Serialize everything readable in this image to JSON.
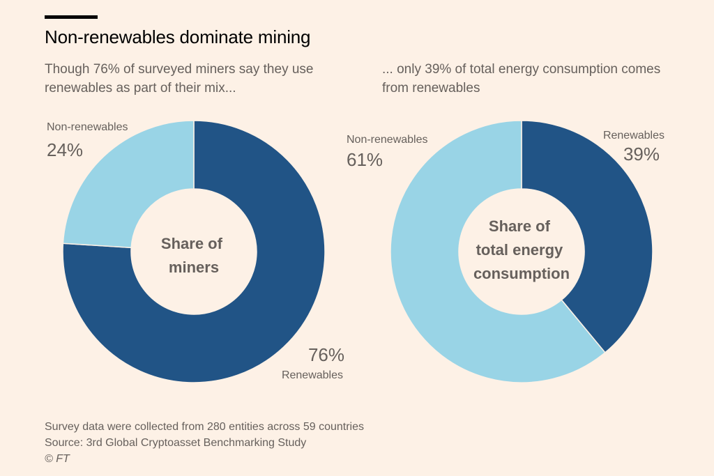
{
  "header": {
    "title": "Non-renewables dominate mining"
  },
  "chart_data": [
    {
      "type": "pie",
      "donut": true,
      "subtitle": "Though 76% of surveyed miners say they use renewables as part of their mix...",
      "center_label": [
        "Share of",
        "miners"
      ],
      "slices": [
        {
          "label": "Renewables",
          "value": 76,
          "display": "76%"
        },
        {
          "label": "Non-renewables",
          "value": 24,
          "display": "24%"
        }
      ]
    },
    {
      "type": "pie",
      "donut": true,
      "subtitle": "... only 39% of total energy consumption comes from renewables",
      "center_label": [
        "Share of",
        "total energy",
        "consumption"
      ],
      "slices": [
        {
          "label": "Renewables",
          "value": 39,
          "display": "39%"
        },
        {
          "label": "Non-renewables",
          "value": 61,
          "display": "61%"
        }
      ]
    }
  ],
  "colors": {
    "renewables": "#215486",
    "non_renewables": "#99d4e6",
    "background": "#fdf1e6"
  },
  "footer": {
    "note": "Survey data were collected from 280 entities across 59 countries",
    "source": "Source: 3rd Global Cryptoasset Benchmarking Study",
    "credit": "© FT"
  }
}
